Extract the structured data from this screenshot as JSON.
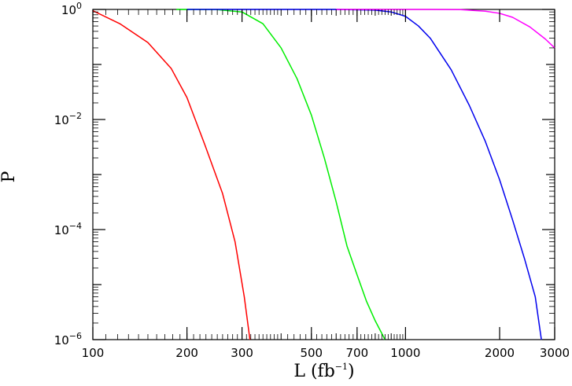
{
  "chart_data": {
    "type": "line",
    "title": "",
    "xlabel": "L (fb",
    "xlabel_sup": "−1",
    "xlabel_close": ")",
    "ylabel": "P",
    "x_scale": "log",
    "y_scale": "log",
    "xlim": [
      100,
      3000
    ],
    "ylim": [
      1e-06,
      1
    ],
    "grid": false,
    "legend": "none",
    "x_ticks": [
      {
        "value": 100,
        "label": "100"
      },
      {
        "value": 200,
        "label": "200"
      },
      {
        "value": 300,
        "label": "300"
      },
      {
        "value": 500,
        "label": "500"
      },
      {
        "value": 700,
        "label": "700"
      },
      {
        "value": 1000,
        "label": "1000"
      },
      {
        "value": 2000,
        "label": "2000"
      },
      {
        "value": 3000,
        "label": "3000"
      }
    ],
    "y_ticks": [
      {
        "value": 1,
        "base": "10",
        "exp": "0"
      },
      {
        "value": 0.01,
        "base": "10",
        "exp": "−2"
      },
      {
        "value": 0.0001,
        "base": "10",
        "exp": "−4"
      },
      {
        "value": 1e-06,
        "base": "10",
        "exp": "−6"
      }
    ],
    "series": [
      {
        "color": "#ff0000",
        "points": [
          [
            100,
            0.95
          ],
          [
            122,
            0.55
          ],
          [
            150,
            0.25
          ],
          [
            178,
            0.085
          ],
          [
            200,
            0.025
          ],
          [
            228,
            0.0035
          ],
          [
            260,
            0.00045
          ],
          [
            285,
            6e-05
          ],
          [
            305,
            6e-06
          ],
          [
            318,
            1e-06
          ]
        ]
      },
      {
        "color": "#00ee00",
        "points": [
          [
            185,
            1.0
          ],
          [
            250,
            0.99
          ],
          [
            300,
            0.9
          ],
          [
            350,
            0.55
          ],
          [
            400,
            0.2
          ],
          [
            450,
            0.055
          ],
          [
            500,
            0.012
          ],
          [
            550,
            0.002
          ],
          [
            600,
            0.00032
          ],
          [
            650,
            5e-05
          ],
          [
            700,
            1.5e-05
          ],
          [
            750,
            5e-06
          ],
          [
            800,
            2.2e-06
          ],
          [
            860,
            1e-06
          ]
        ]
      },
      {
        "color": "#0000ee",
        "points": [
          [
            200,
            1.0
          ],
          [
            600,
            1.0
          ],
          [
            800,
            0.97
          ],
          [
            900,
            0.9
          ],
          [
            1000,
            0.75
          ],
          [
            1100,
            0.5
          ],
          [
            1200,
            0.3
          ],
          [
            1400,
            0.08
          ],
          [
            1600,
            0.018
          ],
          [
            1800,
            0.004
          ],
          [
            2000,
            0.0008
          ],
          [
            2200,
            0.00015
          ],
          [
            2400,
            3e-05
          ],
          [
            2600,
            6e-06
          ],
          [
            2720,
            1e-06
          ]
        ]
      },
      {
        "color": "#ff00ff",
        "points": [
          [
            600,
            1.0
          ],
          [
            1200,
            1.0
          ],
          [
            1500,
            0.99
          ],
          [
            1800,
            0.93
          ],
          [
            2000,
            0.85
          ],
          [
            2200,
            0.72
          ],
          [
            2500,
            0.48
          ],
          [
            2800,
            0.29
          ],
          [
            3000,
            0.2
          ]
        ]
      }
    ]
  }
}
